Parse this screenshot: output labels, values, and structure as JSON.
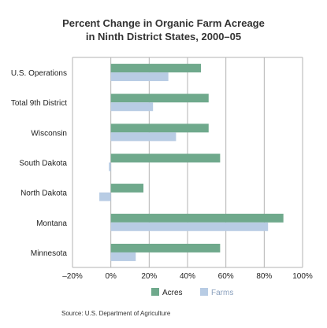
{
  "chart_data": {
    "type": "bar",
    "orientation": "horizontal",
    "title": "Percent Change in Organic Farm Acreage",
    "subtitle": "in Ninth District States, 2000–05",
    "categories": [
      "U.S. Operations",
      "Total 9th District",
      "Wisconsin",
      "South Dakota",
      "North Dakota",
      "Montana",
      "Minnesota"
    ],
    "series": [
      {
        "name": "Acres",
        "color": "#6fa98c",
        "values": [
          47,
          51,
          51,
          57,
          17,
          90,
          57
        ]
      },
      {
        "name": "Farms",
        "color": "#b8cce4",
        "values": [
          30,
          22,
          34,
          -1,
          -6,
          82,
          13
        ]
      }
    ],
    "xlim": [
      -20,
      100
    ],
    "xticks": [
      -20,
      0,
      20,
      40,
      60,
      80,
      100
    ],
    "xtick_labels": [
      "–20%",
      "0%",
      "20%",
      "40%",
      "60%",
      "80%",
      "100%"
    ],
    "grid": true,
    "legend_position": "bottom",
    "source": "Source: U.S. Department of Agriculture"
  }
}
